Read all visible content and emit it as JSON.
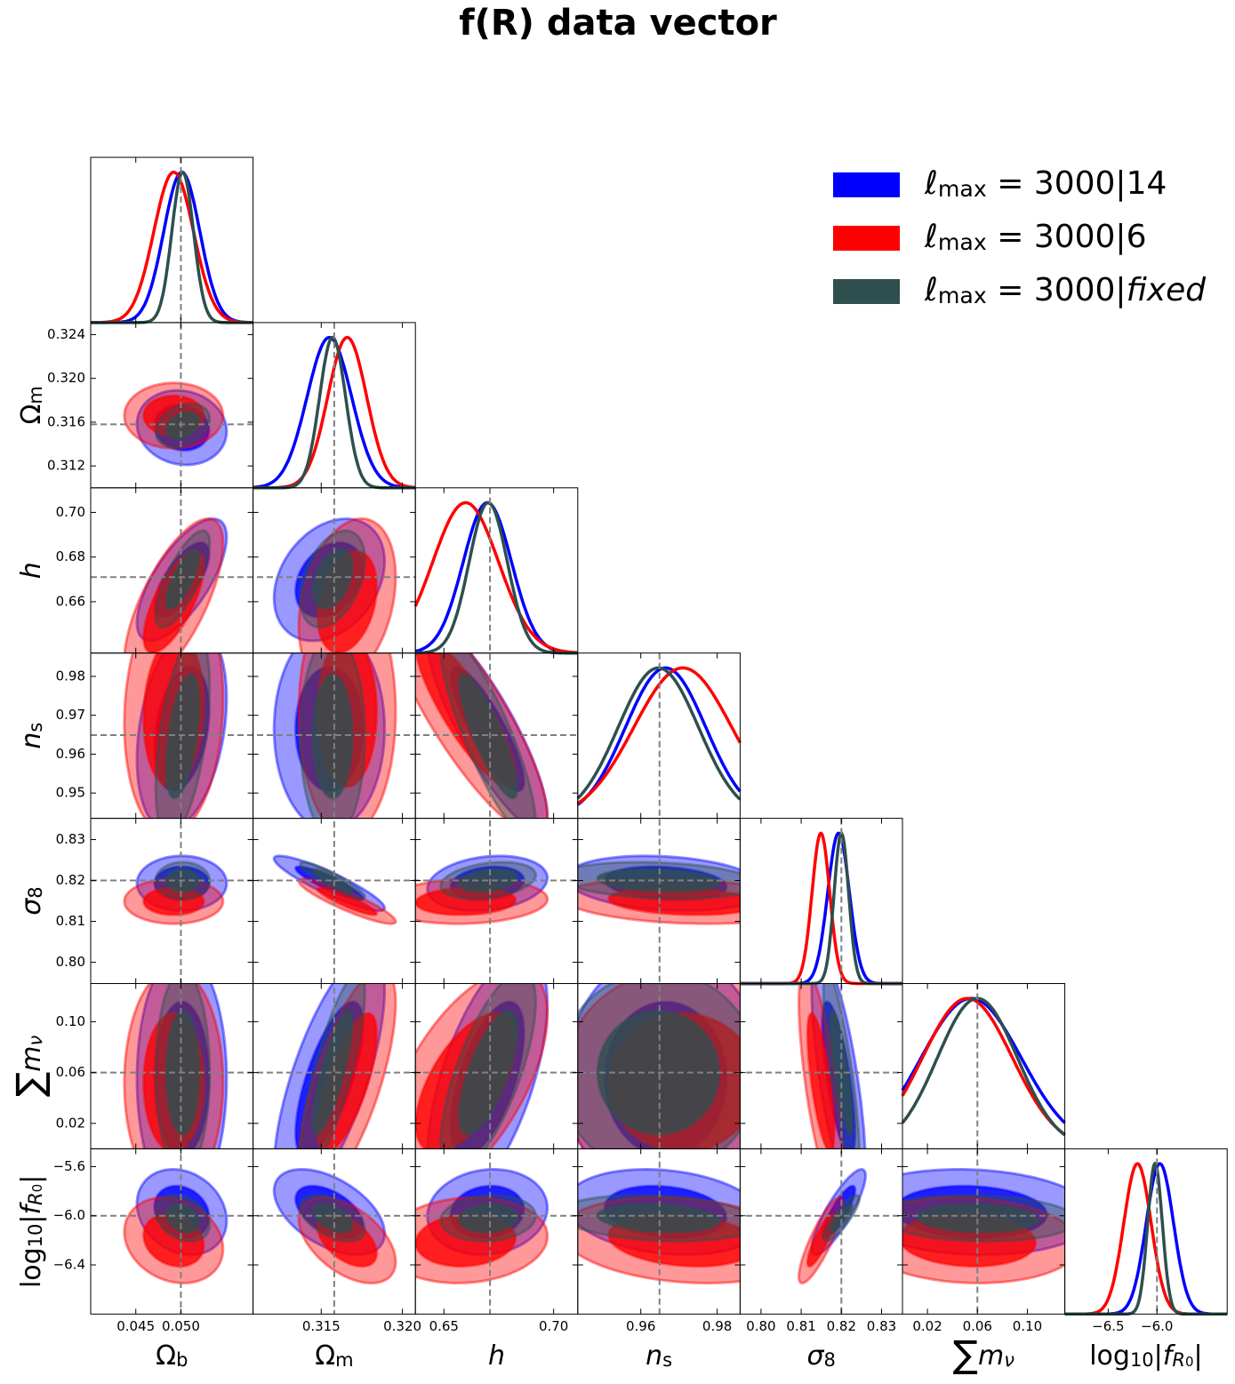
{
  "chart_data": {
    "type": "corner",
    "title": "f(R) data vector",
    "params": [
      {
        "label": [
          {
            "text": "Ω"
          },
          {
            "text": "b",
            "pos": "sub"
          }
        ],
        "truth": 0.05,
        "xlim": [
          0.04,
          0.058
        ],
        "xticks": [
          0.045,
          {
            "value": 0.05,
            "label": "0.050"
          }
        ]
      },
      {
        "label": [
          {
            "text": "Ω"
          },
          {
            "text": "m",
            "pos": "sub"
          }
        ],
        "truth": 0.3158,
        "xlim": [
          0.3108,
          0.3208
        ],
        "xticks": [
          0.315,
          {
            "value": 0.32,
            "label": "0.320"
          }
        ],
        "ylim": [
          0.31,
          0.3251
        ],
        "yticks": [
          0.312,
          0.316,
          {
            "value": 0.32,
            "label": "0.320"
          },
          0.324
        ]
      },
      {
        "label": [
          {
            "text": "h",
            "italic": true
          }
        ],
        "truth": 0.671,
        "xlim": [
          0.637,
          0.711
        ],
        "xticks": [
          0.65,
          {
            "value": 0.7,
            "label": "0.70"
          }
        ],
        "ylim": [
          0.637,
          0.711
        ],
        "yticks": [
          0.66,
          0.68,
          {
            "value": 0.7,
            "label": "0.70"
          }
        ]
      },
      {
        "label": [
          {
            "text": "n",
            "italic": true
          },
          {
            "text": "s",
            "pos": "sub"
          }
        ],
        "truth": 0.9649,
        "xlim": [
          0.9435,
          0.986
        ],
        "xticks": [
          0.96,
          0.98
        ],
        "ylim": [
          0.9435,
          0.986
        ],
        "yticks": [
          0.95,
          0.96,
          0.97,
          0.98
        ]
      },
      {
        "label": [
          {
            "text": "σ",
            "italic": true
          },
          {
            "text": "8",
            "pos": "sub"
          }
        ],
        "truth": 0.82,
        "xlim": [
          0.7948,
          0.8352
        ],
        "xticks": [
          {
            "value": 0.8,
            "label": "0.80"
          },
          0.81,
          0.82,
          0.83
        ],
        "ylim": [
          0.7948,
          0.8352
        ],
        "yticks": [
          {
            "value": 0.8,
            "label": "0.80"
          },
          0.81,
          0.82,
          0.83
        ]
      },
      {
        "label": [
          {
            "text": "∑",
            "big": true
          },
          {
            "text": "m",
            "italic": true
          },
          {
            "text": "ν",
            "pos": "sub",
            "italic": true
          }
        ],
        "truth": 0.06,
        "xlim": [
          0,
          0.13
        ],
        "xticks": [
          0.02,
          0.06,
          {
            "value": 0.1,
            "label": "0.10"
          }
        ],
        "ylim": [
          0,
          0.13
        ],
        "yticks": [
          0.02,
          0.06,
          {
            "value": 0.1,
            "label": "0.10"
          }
        ]
      },
      {
        "label": [
          {
            "text": "log"
          },
          {
            "text": "10",
            "pos": "sub"
          },
          {
            "text": "|"
          },
          {
            "text": "f",
            "italic": true
          },
          {
            "text": "R",
            "pos": "sub",
            "italic": true
          },
          {
            "text": "0",
            "pos": "subsub"
          },
          {
            "text": "|"
          }
        ],
        "truth": -6,
        "xlim": [
          -6.945,
          -5.28
        ],
        "xticks": [
          {
            "value": -6.5,
            "label": "−6.5"
          },
          {
            "value": -6,
            "label": "−6.0"
          }
        ],
        "ylim": [
          -6.8,
          -5.455
        ],
        "yticks": [
          {
            "value": -6.4,
            "label": "−6.4"
          },
          {
            "value": -6,
            "label": "−6.0"
          },
          {
            "value": -5.6,
            "label": "−5.6"
          }
        ]
      }
    ],
    "series": [
      {
        "name": [
          {
            "text": "ℓ",
            "italic": true
          },
          {
            "text": "max",
            "pos": "sub"
          },
          {
            "text": " = 3000|14"
          }
        ],
        "color": "#0000ff",
        "mean": [
          0.0501,
          0.3155,
          0.6698,
          0.9665,
          0.8193,
          0.055,
          -5.97
        ],
        "sigma": [
          0.002,
          0.00137,
          0.011,
          0.0105,
          0.0027,
          0.04,
          0.14
        ],
        "rho": [
          [],
          [
            -0.1
          ],
          [
            0.7,
            0.3
          ],
          [
            0.3,
            0,
            -0.85
          ],
          [
            0,
            -0.9,
            0.2,
            -0.2
          ],
          [
            0,
            0.7,
            0.6,
            0,
            -0.7
          ],
          [
            -0.2,
            -0.5,
            0.1,
            -0.2,
            0.85,
            -0.1
          ]
        ]
      },
      {
        "name": [
          {
            "text": "ℓ",
            "italic": true
          },
          {
            "text": "max",
            "pos": "sub"
          },
          {
            "text": " = 3000|6"
          }
        ],
        "color": "#ff0000",
        "mean": [
          0.0492,
          0.3166,
          0.6599,
          0.971,
          0.8149,
          0.052,
          -6.2
        ],
        "sigma": [
          0.0022,
          0.0012,
          0.015,
          0.0128,
          0.0022,
          0.036,
          0.14
        ],
        "rho": [
          [],
          [
            0
          ],
          [
            0.7,
            0.3
          ],
          [
            0.1,
            0,
            -0.85
          ],
          [
            0,
            -0.9,
            0.1,
            -0.2
          ],
          [
            0,
            0.7,
            0.6,
            0,
            -0.7
          ],
          [
            -0.2,
            -0.5,
            0.1,
            -0.2,
            0.85,
            -0.1
          ]
        ]
      },
      {
        "name": [
          {
            "text": "ℓ",
            "italic": true
          },
          {
            "text": "max",
            "pos": "sub"
          },
          {
            "text": " = 3000|"
          },
          {
            "text": "fixed",
            "italic": true
          }
        ],
        "color": "#2f4f4f",
        "mean": [
          0.0502,
          0.3157,
          0.6702,
          0.9646,
          0.82,
          0.06,
          -6.02
        ],
        "sigma": [
          0.0012,
          0.0008,
          0.0087,
          0.0105,
          0.0018,
          0.032,
          0.075
        ],
        "rho": [
          [],
          [
            0.3
          ],
          [
            0.75,
            0.4
          ],
          [
            0.5,
            0,
            -0.85
          ],
          [
            0,
            -0.9,
            0.3,
            -0.2
          ],
          [
            0,
            0.8,
            0.7,
            0,
            -0.8
          ],
          [
            -0.3,
            -0.5,
            0.1,
            -0.2,
            0.85,
            -0.1
          ]
        ]
      }
    ]
  }
}
